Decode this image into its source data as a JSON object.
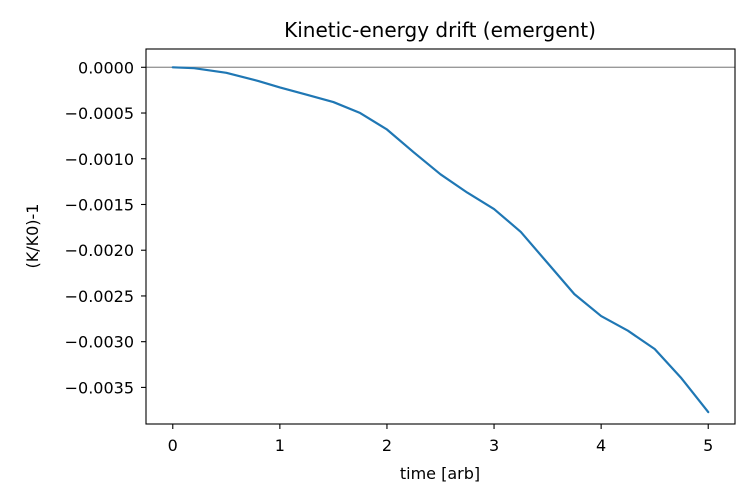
{
  "chart_data": {
    "type": "line",
    "title": "Kinetic-energy drift (emergent)",
    "xlabel": "time [arb]",
    "ylabel": "(K/K0)-1",
    "xlim": [
      -0.25,
      5.25
    ],
    "ylim": [
      -0.0039,
      0.0002
    ],
    "xticks": [
      0,
      1,
      2,
      3,
      4,
      5
    ],
    "xtick_labels": [
      "0",
      "1",
      "2",
      "3",
      "4",
      "5"
    ],
    "yticks": [
      0.0,
      -0.0005,
      -0.001,
      -0.0015,
      -0.002,
      -0.0025,
      -0.003,
      -0.0035
    ],
    "ytick_labels": [
      "0.0000",
      "−0.0005",
      "−0.0010",
      "−0.0015",
      "−0.0020",
      "−0.0025",
      "−0.0030",
      "−0.0035"
    ],
    "grid": false,
    "reference_line": {
      "y": 0.0,
      "color": "#999999"
    },
    "series": [
      {
        "color": "#1f77b4",
        "x": [
          0.0,
          0.2,
          0.5,
          0.8,
          1.0,
          1.25,
          1.5,
          1.75,
          2.0,
          2.25,
          2.5,
          2.75,
          3.0,
          3.25,
          3.5,
          3.75,
          4.0,
          4.25,
          4.5,
          4.75,
          5.0
        ],
        "y": [
          0.0,
          -1e-05,
          -6e-05,
          -0.00015,
          -0.00022,
          -0.0003,
          -0.00038,
          -0.0005,
          -0.00068,
          -0.00093,
          -0.00117,
          -0.00137,
          -0.00155,
          -0.0018,
          -0.00214,
          -0.00248,
          -0.00272,
          -0.00288,
          -0.00308,
          -0.0034,
          -0.00377
        ]
      }
    ]
  }
}
